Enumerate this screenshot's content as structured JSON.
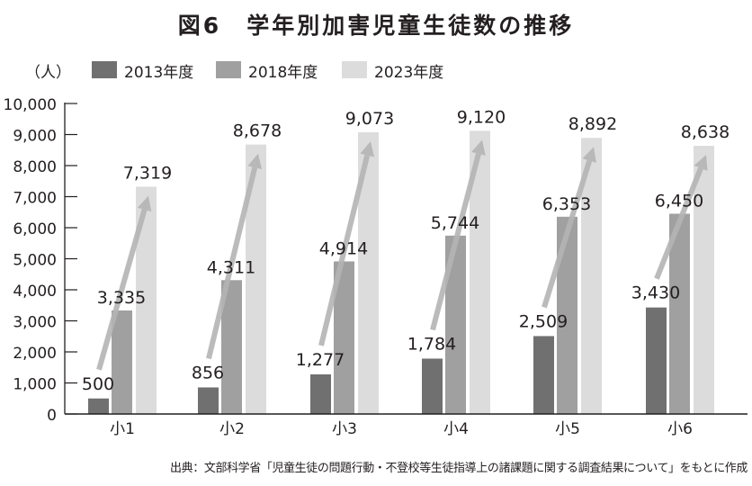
{
  "title": "図6　学年別加害児童生徒数の推移",
  "unit_label": "（人）",
  "legend": [
    {
      "label": "2013年度",
      "color": "#707070"
    },
    {
      "label": "2018年度",
      "color": "#a0a0a0"
    },
    {
      "label": "2023年度",
      "color": "#dcdcdc"
    }
  ],
  "arrow_color": "#b4b4b4",
  "source_note": "出典：文部科学省「児童生徒の問題行動・不登校等生徒指導上の諸課題に関する調査結果について」をもとに作成",
  "chart_data": {
    "type": "bar",
    "title": "図6　学年別加害児童生徒数の推移",
    "xlabel": "",
    "ylabel": "（人）",
    "ylim": [
      0,
      10000
    ],
    "yticks": [
      0,
      1000,
      2000,
      3000,
      4000,
      5000,
      6000,
      7000,
      8000,
      9000,
      10000
    ],
    "ytick_labels": [
      "0",
      "1,000",
      "2,000",
      "3,000",
      "4,000",
      "5,000",
      "6,000",
      "7,000",
      "8,000",
      "9,000",
      "10,000"
    ],
    "grid": false,
    "legend_position": "top-left",
    "categories": [
      "小1",
      "小2",
      "小3",
      "小4",
      "小5",
      "小6"
    ],
    "series": [
      {
        "name": "2013年度",
        "values": [
          500,
          856,
          1277,
          1784,
          2509,
          3430
        ],
        "labels": [
          "500",
          "856",
          "1,277",
          "1,784",
          "2,509",
          "3,430"
        ]
      },
      {
        "name": "2018年度",
        "values": [
          3335,
          4311,
          4914,
          5744,
          6353,
          6450
        ],
        "labels": [
          "3,335",
          "4,311",
          "4,914",
          "5,744",
          "6,353",
          "6,450"
        ]
      },
      {
        "name": "2023年度",
        "values": [
          7319,
          8678,
          9073,
          9120,
          8892,
          8638
        ],
        "labels": [
          "7,319",
          "8,678",
          "9,073",
          "9,120",
          "8,892",
          "8,638"
        ]
      }
    ],
    "annotations": "Upward arrow in each grade group from 2013 value to 2023 value"
  }
}
